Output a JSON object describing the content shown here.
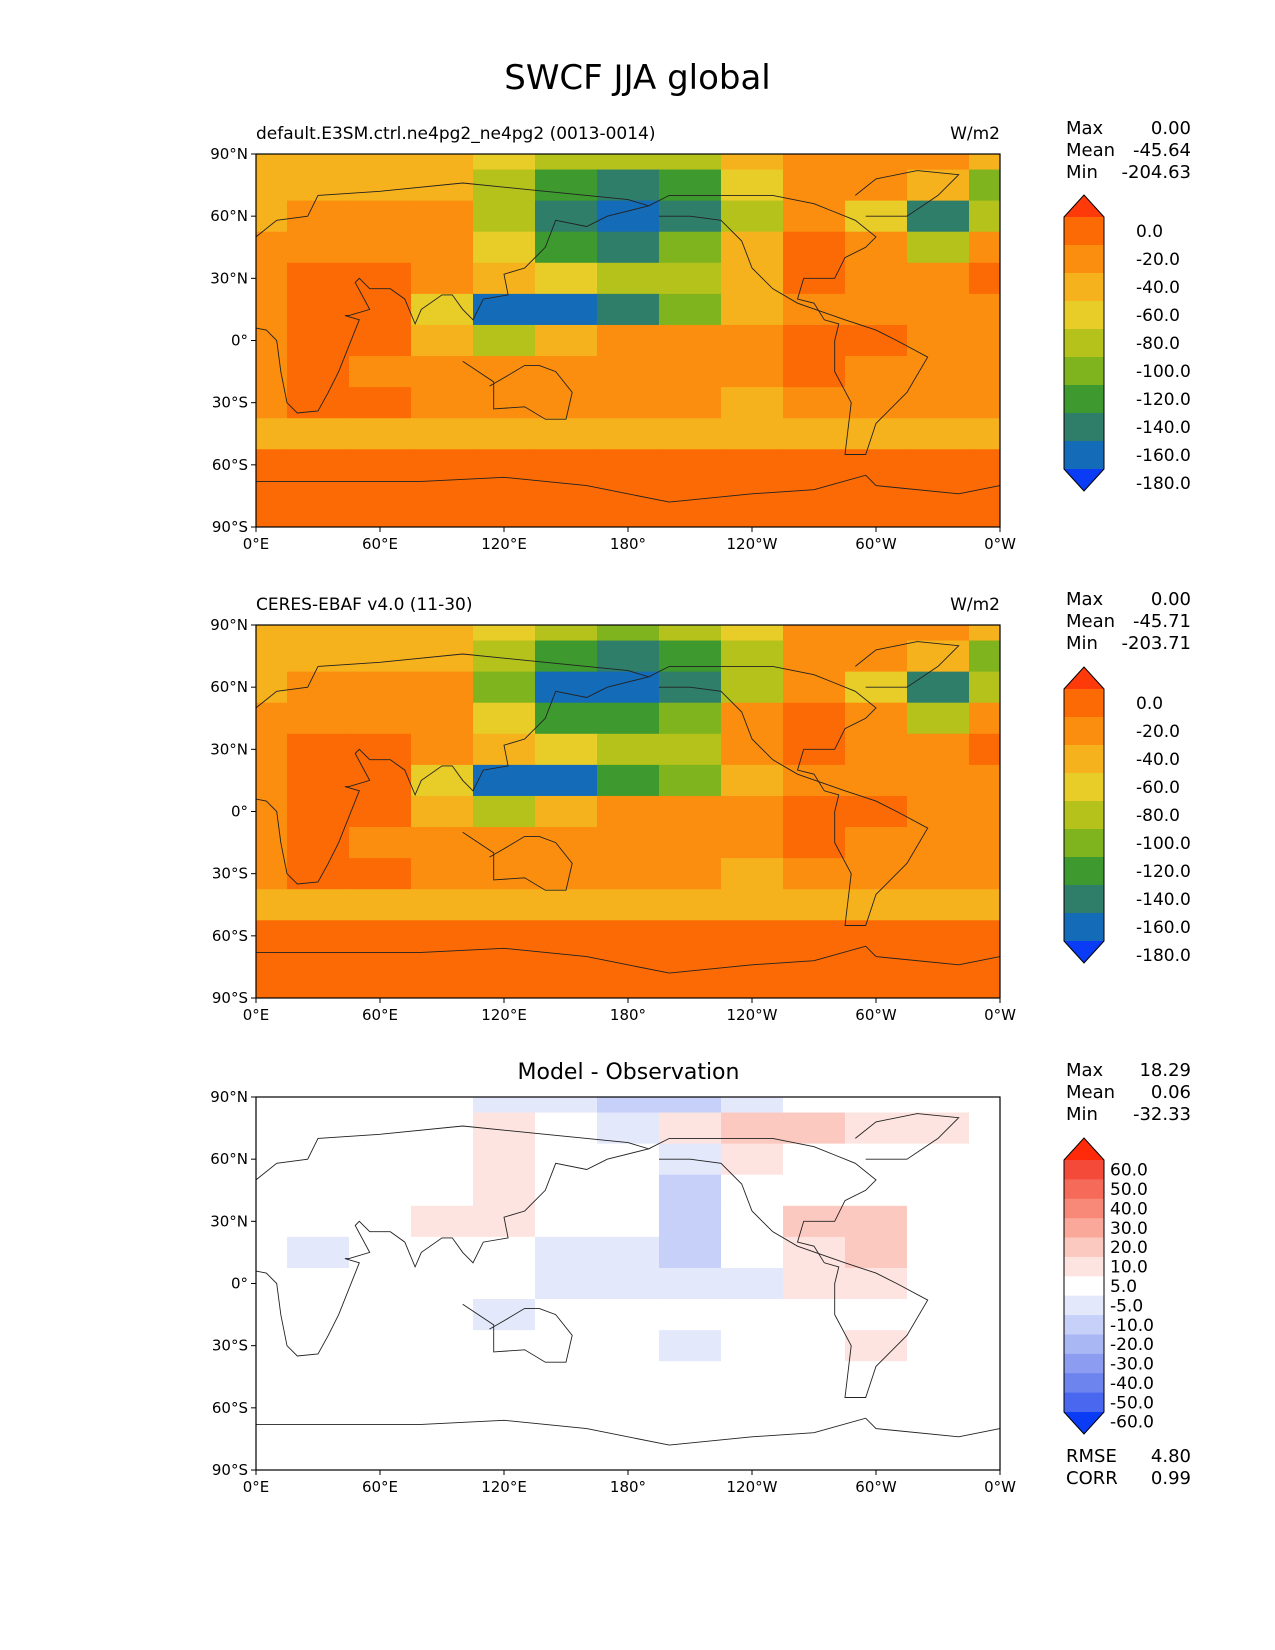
{
  "title": "SWCF JJA global",
  "panels": [
    {
      "id": "test",
      "left_label": "default.E3SM.ctrl.ne4pg2_ne4pg2 (0013-0014)",
      "center_label": "",
      "right_label": "W/m2",
      "stats": [
        {
          "k": "Max",
          "v": "0.00"
        },
        {
          "k": "Mean",
          "v": "-45.64"
        },
        {
          "k": "Min",
          "v": "-204.63"
        }
      ],
      "bottom_stats": []
    },
    {
      "id": "ref",
      "left_label": "CERES-EBAF v4.0 (11-30)",
      "center_label": "",
      "right_label": "W/m2",
      "stats": [
        {
          "k": "Max",
          "v": "0.00"
        },
        {
          "k": "Mean",
          "v": "-45.71"
        },
        {
          "k": "Min",
          "v": "-203.71"
        }
      ],
      "bottom_stats": []
    },
    {
      "id": "diff",
      "left_label": "",
      "center_label": "Model - Observation",
      "right_label": "",
      "stats": [
        {
          "k": "Max",
          "v": "18.29"
        },
        {
          "k": "Mean",
          "v": "0.06"
        },
        {
          "k": "Min",
          "v": "-32.33"
        }
      ],
      "bottom_stats": [
        {
          "k": "RMSE",
          "v": "4.80"
        },
        {
          "k": "CORR",
          "v": "0.99"
        }
      ]
    }
  ],
  "chart_data": [
    {
      "type": "heatmap",
      "title": "default.E3SM.ctrl.ne4pg2_ne4pg2 (0013-0014)",
      "units": "W/m2",
      "x_ticks": [
        "0°E",
        "60°E",
        "120°E",
        "180°",
        "120°W",
        "60°W",
        "0°W"
      ],
      "y_ticks": [
        "90°N",
        "60°N",
        "30°N",
        "0°",
        "30°S",
        "60°S",
        "90°S"
      ],
      "colorbar_levels": [
        "0.0",
        "-20.0",
        "-40.0",
        "-60.0",
        "-80.0",
        "-100.0",
        "-120.0",
        "-140.0",
        "-160.0",
        "-180.0"
      ],
      "colorbar_colors": [
        "#ff3a0a",
        "#fb6a04",
        "#fb8e0e",
        "#f6b21d",
        "#e8cc28",
        "#b5c21c",
        "#7fb41e",
        "#3e9a2e",
        "#2f7e6a",
        "#146bb8",
        "#0a3cf6"
      ],
      "lon_grid": [
        0,
        30,
        60,
        90,
        120,
        150,
        180,
        210,
        240,
        270,
        300,
        330,
        360
      ],
      "lat_grid": [
        90,
        75,
        60,
        45,
        30,
        15,
        0,
        -15,
        -30,
        -45,
        -60,
        -75,
        -90
      ],
      "field": [
        [
          -60,
          -60,
          -60,
          -60,
          -80,
          -100,
          -100,
          -100,
          -60,
          -40,
          -40,
          -40,
          -60
        ],
        [
          -60,
          -60,
          -60,
          -60,
          -100,
          -140,
          -160,
          -140,
          -80,
          -40,
          -40,
          -60,
          -120
        ],
        [
          -60,
          -40,
          -40,
          -40,
          -100,
          -160,
          -180,
          -160,
          -100,
          -40,
          -80,
          -160,
          -100
        ],
        [
          -40,
          -40,
          -40,
          -40,
          -80,
          -140,
          -160,
          -120,
          -60,
          -20,
          -40,
          -100,
          -40
        ],
        [
          -40,
          -20,
          -20,
          -40,
          -60,
          -80,
          -100,
          -100,
          -60,
          -20,
          -40,
          -40,
          -20
        ],
        [
          -40,
          -20,
          -20,
          -80,
          -180,
          -170,
          -160,
          -120,
          -60,
          -40,
          -40,
          -40,
          -40
        ],
        [
          -40,
          -20,
          -20,
          -60,
          -100,
          -60,
          -40,
          -40,
          -40,
          -20,
          -20,
          -40,
          -40
        ],
        [
          -40,
          -20,
          -40,
          -40,
          -40,
          -40,
          -40,
          -40,
          -40,
          -20,
          -40,
          -40,
          -40
        ],
        [
          -40,
          -20,
          -20,
          -40,
          -40,
          -40,
          -40,
          -40,
          -60,
          -40,
          -40,
          -40,
          -40
        ],
        [
          -60,
          -60,
          -60,
          -60,
          -60,
          -60,
          -60,
          -60,
          -60,
          -60,
          -60,
          -60,
          -60
        ],
        [
          -20,
          -20,
          -20,
          -20,
          -20,
          -20,
          -20,
          -20,
          -20,
          -20,
          -20,
          -20,
          -20
        ],
        [
          -20,
          -20,
          -20,
          -20,
          -20,
          -20,
          -20,
          -20,
          -20,
          -20,
          -20,
          -20,
          -20
        ],
        [
          -20,
          -20,
          -20,
          -20,
          -20,
          -20,
          -20,
          -20,
          -20,
          -20,
          -20,
          -20,
          -20
        ]
      ]
    },
    {
      "type": "heatmap",
      "title": "CERES-EBAF v4.0 (11-30)",
      "units": "W/m2",
      "x_ticks": [
        "0°E",
        "60°E",
        "120°E",
        "180°",
        "120°W",
        "60°W",
        "0°W"
      ],
      "y_ticks": [
        "90°N",
        "60°N",
        "30°N",
        "0°",
        "30°S",
        "60°S",
        "90°S"
      ],
      "colorbar_levels": [
        "0.0",
        "-20.0",
        "-40.0",
        "-60.0",
        "-80.0",
        "-100.0",
        "-120.0",
        "-140.0",
        "-160.0",
        "-180.0"
      ],
      "colorbar_colors": [
        "#ff3a0a",
        "#fb6a04",
        "#fb8e0e",
        "#f6b21d",
        "#e8cc28",
        "#b5c21c",
        "#7fb41e",
        "#3e9a2e",
        "#2f7e6a",
        "#146bb8",
        "#0a3cf6"
      ],
      "lon_grid": [
        0,
        30,
        60,
        90,
        120,
        150,
        180,
        210,
        240,
        270,
        300,
        330,
        360
      ],
      "lat_grid": [
        90,
        75,
        60,
        45,
        30,
        15,
        0,
        -15,
        -30,
        -45,
        -60,
        -75,
        -90
      ],
      "field": [
        [
          -60,
          -60,
          -60,
          -60,
          -80,
          -100,
          -120,
          -100,
          -80,
          -40,
          -40,
          -40,
          -60
        ],
        [
          -60,
          -60,
          -60,
          -60,
          -100,
          -140,
          -160,
          -140,
          -100,
          -40,
          -40,
          -60,
          -120
        ],
        [
          -60,
          -40,
          -40,
          -40,
          -120,
          -170,
          -180,
          -150,
          -100,
          -40,
          -80,
          -160,
          -100
        ],
        [
          -40,
          -40,
          -40,
          -40,
          -80,
          -140,
          -140,
          -120,
          -40,
          -20,
          -40,
          -100,
          -40
        ],
        [
          -40,
          -20,
          -20,
          -40,
          -60,
          -80,
          -100,
          -100,
          -40,
          -20,
          -40,
          -40,
          -20
        ],
        [
          -40,
          -20,
          -20,
          -80,
          -180,
          -170,
          -140,
          -110,
          -60,
          -40,
          -40,
          -40,
          -40
        ],
        [
          -40,
          -20,
          -20,
          -60,
          -100,
          -60,
          -40,
          -40,
          -40,
          -20,
          -20,
          -40,
          -40
        ],
        [
          -40,
          -20,
          -40,
          -40,
          -40,
          -40,
          -40,
          -40,
          -40,
          -20,
          -40,
          -40,
          -40
        ],
        [
          -40,
          -20,
          -20,
          -40,
          -40,
          -40,
          -40,
          -40,
          -60,
          -40,
          -40,
          -40,
          -40
        ],
        [
          -60,
          -60,
          -60,
          -60,
          -60,
          -60,
          -60,
          -60,
          -60,
          -60,
          -60,
          -60,
          -60
        ],
        [
          -20,
          -20,
          -20,
          -20,
          -20,
          -20,
          -20,
          -20,
          -20,
          -20,
          -20,
          -20,
          -20
        ],
        [
          -20,
          -20,
          -20,
          -20,
          -20,
          -20,
          -20,
          -20,
          -20,
          -20,
          -20,
          -20,
          -20
        ],
        [
          -20,
          -20,
          -20,
          -20,
          -20,
          -20,
          -20,
          -20,
          -20,
          -20,
          -20,
          -20,
          -20
        ]
      ]
    },
    {
      "type": "heatmap",
      "title": "Model - Observation",
      "units": "",
      "x_ticks": [
        "0°E",
        "60°E",
        "120°E",
        "180°",
        "120°W",
        "60°W",
        "0°W"
      ],
      "y_ticks": [
        "90°N",
        "60°N",
        "30°N",
        "0°",
        "30°S",
        "60°S",
        "90°S"
      ],
      "colorbar_levels": [
        "60.0",
        "50.0",
        "40.0",
        "30.0",
        "20.0",
        "10.0",
        "5.0",
        "-5.0",
        "-10.0",
        "-20.0",
        "-30.0",
        "-40.0",
        "-50.0",
        "-60.0"
      ],
      "colorbar_colors": [
        "#ff2a0a",
        "#f44a3a",
        "#f66a5a",
        "#f88878",
        "#faa89a",
        "#fbc9c0",
        "#fde4e0",
        "#ffffff",
        "#e4e8fb",
        "#c7d0f8",
        "#aab7f5",
        "#8c9df1",
        "#6d84ee",
        "#4a67f0",
        "#0a3cf6"
      ],
      "lon_grid": [
        0,
        30,
        60,
        90,
        120,
        150,
        180,
        210,
        240,
        270,
        300,
        330,
        360
      ],
      "lat_grid": [
        90,
        75,
        60,
        45,
        30,
        15,
        0,
        -15,
        -30,
        -45,
        -60,
        -75,
        -90
      ],
      "field": [
        [
          0,
          0,
          0,
          0,
          -6,
          -6,
          -12,
          -12,
          -6,
          0,
          0,
          0,
          0
        ],
        [
          0,
          0,
          0,
          0,
          6,
          0,
          -6,
          6,
          12,
          12,
          6,
          8,
          0
        ],
        [
          0,
          0,
          0,
          0,
          6,
          0,
          0,
          -6,
          6,
          0,
          0,
          0,
          0
        ],
        [
          0,
          0,
          0,
          0,
          6,
          0,
          0,
          -12,
          0,
          0,
          0,
          0,
          0
        ],
        [
          0,
          0,
          0,
          6,
          6,
          0,
          0,
          -20,
          0,
          12,
          12,
          0,
          0
        ],
        [
          0,
          -6,
          0,
          0,
          0,
          -6,
          -6,
          -20,
          0,
          6,
          12,
          0,
          0
        ],
        [
          0,
          0,
          0,
          0,
          0,
          -6,
          -6,
          -6,
          -6,
          6,
          6,
          0,
          0
        ],
        [
          0,
          0,
          0,
          0,
          -6,
          0,
          0,
          0,
          0,
          0,
          0,
          0,
          0
        ],
        [
          0,
          0,
          0,
          0,
          0,
          0,
          0,
          -6,
          0,
          0,
          6,
          0,
          0
        ],
        [
          0,
          0,
          0,
          0,
          0,
          0,
          0,
          0,
          0,
          0,
          0,
          0,
          0
        ],
        [
          0,
          0,
          0,
          0,
          0,
          0,
          0,
          0,
          0,
          0,
          0,
          0,
          0
        ],
        [
          0,
          0,
          0,
          0,
          0,
          0,
          0,
          0,
          0,
          0,
          0,
          0,
          0
        ],
        [
          0,
          0,
          0,
          0,
          0,
          0,
          0,
          0,
          0,
          0,
          0,
          0,
          0
        ]
      ]
    }
  ]
}
